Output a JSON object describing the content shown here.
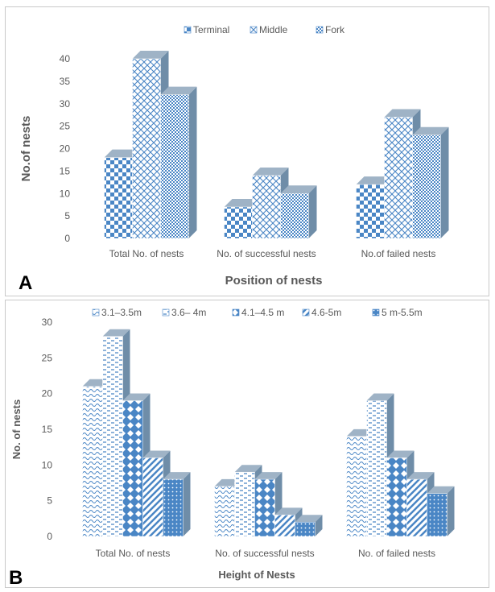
{
  "chart_data": [
    {
      "type": "bar",
      "panel_label": "A",
      "categories": [
        "Total No. of nests",
        "No. of successful nests",
        "No.of failed nests"
      ],
      "series": [
        {
          "name": "Terminal",
          "values": [
            18,
            7,
            12
          ],
          "pattern": "checker"
        },
        {
          "name": "Middle",
          "values": [
            40,
            14,
            27
          ],
          "pattern": "diag-cross"
        },
        {
          "name": "Fork",
          "values": [
            32,
            10,
            23
          ],
          "pattern": "small-checker"
        }
      ],
      "xlabel": "Position of nests",
      "ylabel": "No.of nests",
      "ylim": [
        0,
        40
      ],
      "yticks": [
        0,
        5,
        10,
        15,
        20,
        25,
        30,
        35,
        40
      ],
      "grid": false,
      "legend": "top-center",
      "three_d": true,
      "colors": {
        "bar": "#4a86c5",
        "bar_side": "#6f8da8",
        "bar_top": "#9fb3c6"
      }
    },
    {
      "type": "bar",
      "panel_label": "B",
      "categories": [
        "Total No. of nests",
        "No. of successful nests",
        "No. of failed  nests"
      ],
      "series": [
        {
          "name": "3.1–3.5m",
          "values": [
            21,
            7,
            14
          ],
          "pattern": "waves"
        },
        {
          "name": "3.6– 4m",
          "values": [
            28,
            9,
            19
          ],
          "pattern": "dashes"
        },
        {
          "name": "4.1–4.5 m",
          "values": [
            19,
            8,
            11
          ],
          "pattern": "diamonds"
        },
        {
          "name": "4.6-5m",
          "values": [
            11,
            3,
            8
          ],
          "pattern": "wide-diagonal"
        },
        {
          "name": "5 m-5.5m",
          "values": [
            8,
            2,
            6
          ],
          "pattern": "dots"
        }
      ],
      "xlabel": "Height of Nests",
      "ylabel": "No. of nests",
      "ylim": [
        0,
        30
      ],
      "yticks": [
        0,
        5,
        10,
        15,
        20,
        25,
        30
      ],
      "grid": false,
      "legend": "top-center",
      "three_d": true,
      "colors": {
        "bar": "#4a86c5",
        "bar_side": "#6f8da8",
        "bar_top": "#9fb3c6"
      }
    }
  ]
}
